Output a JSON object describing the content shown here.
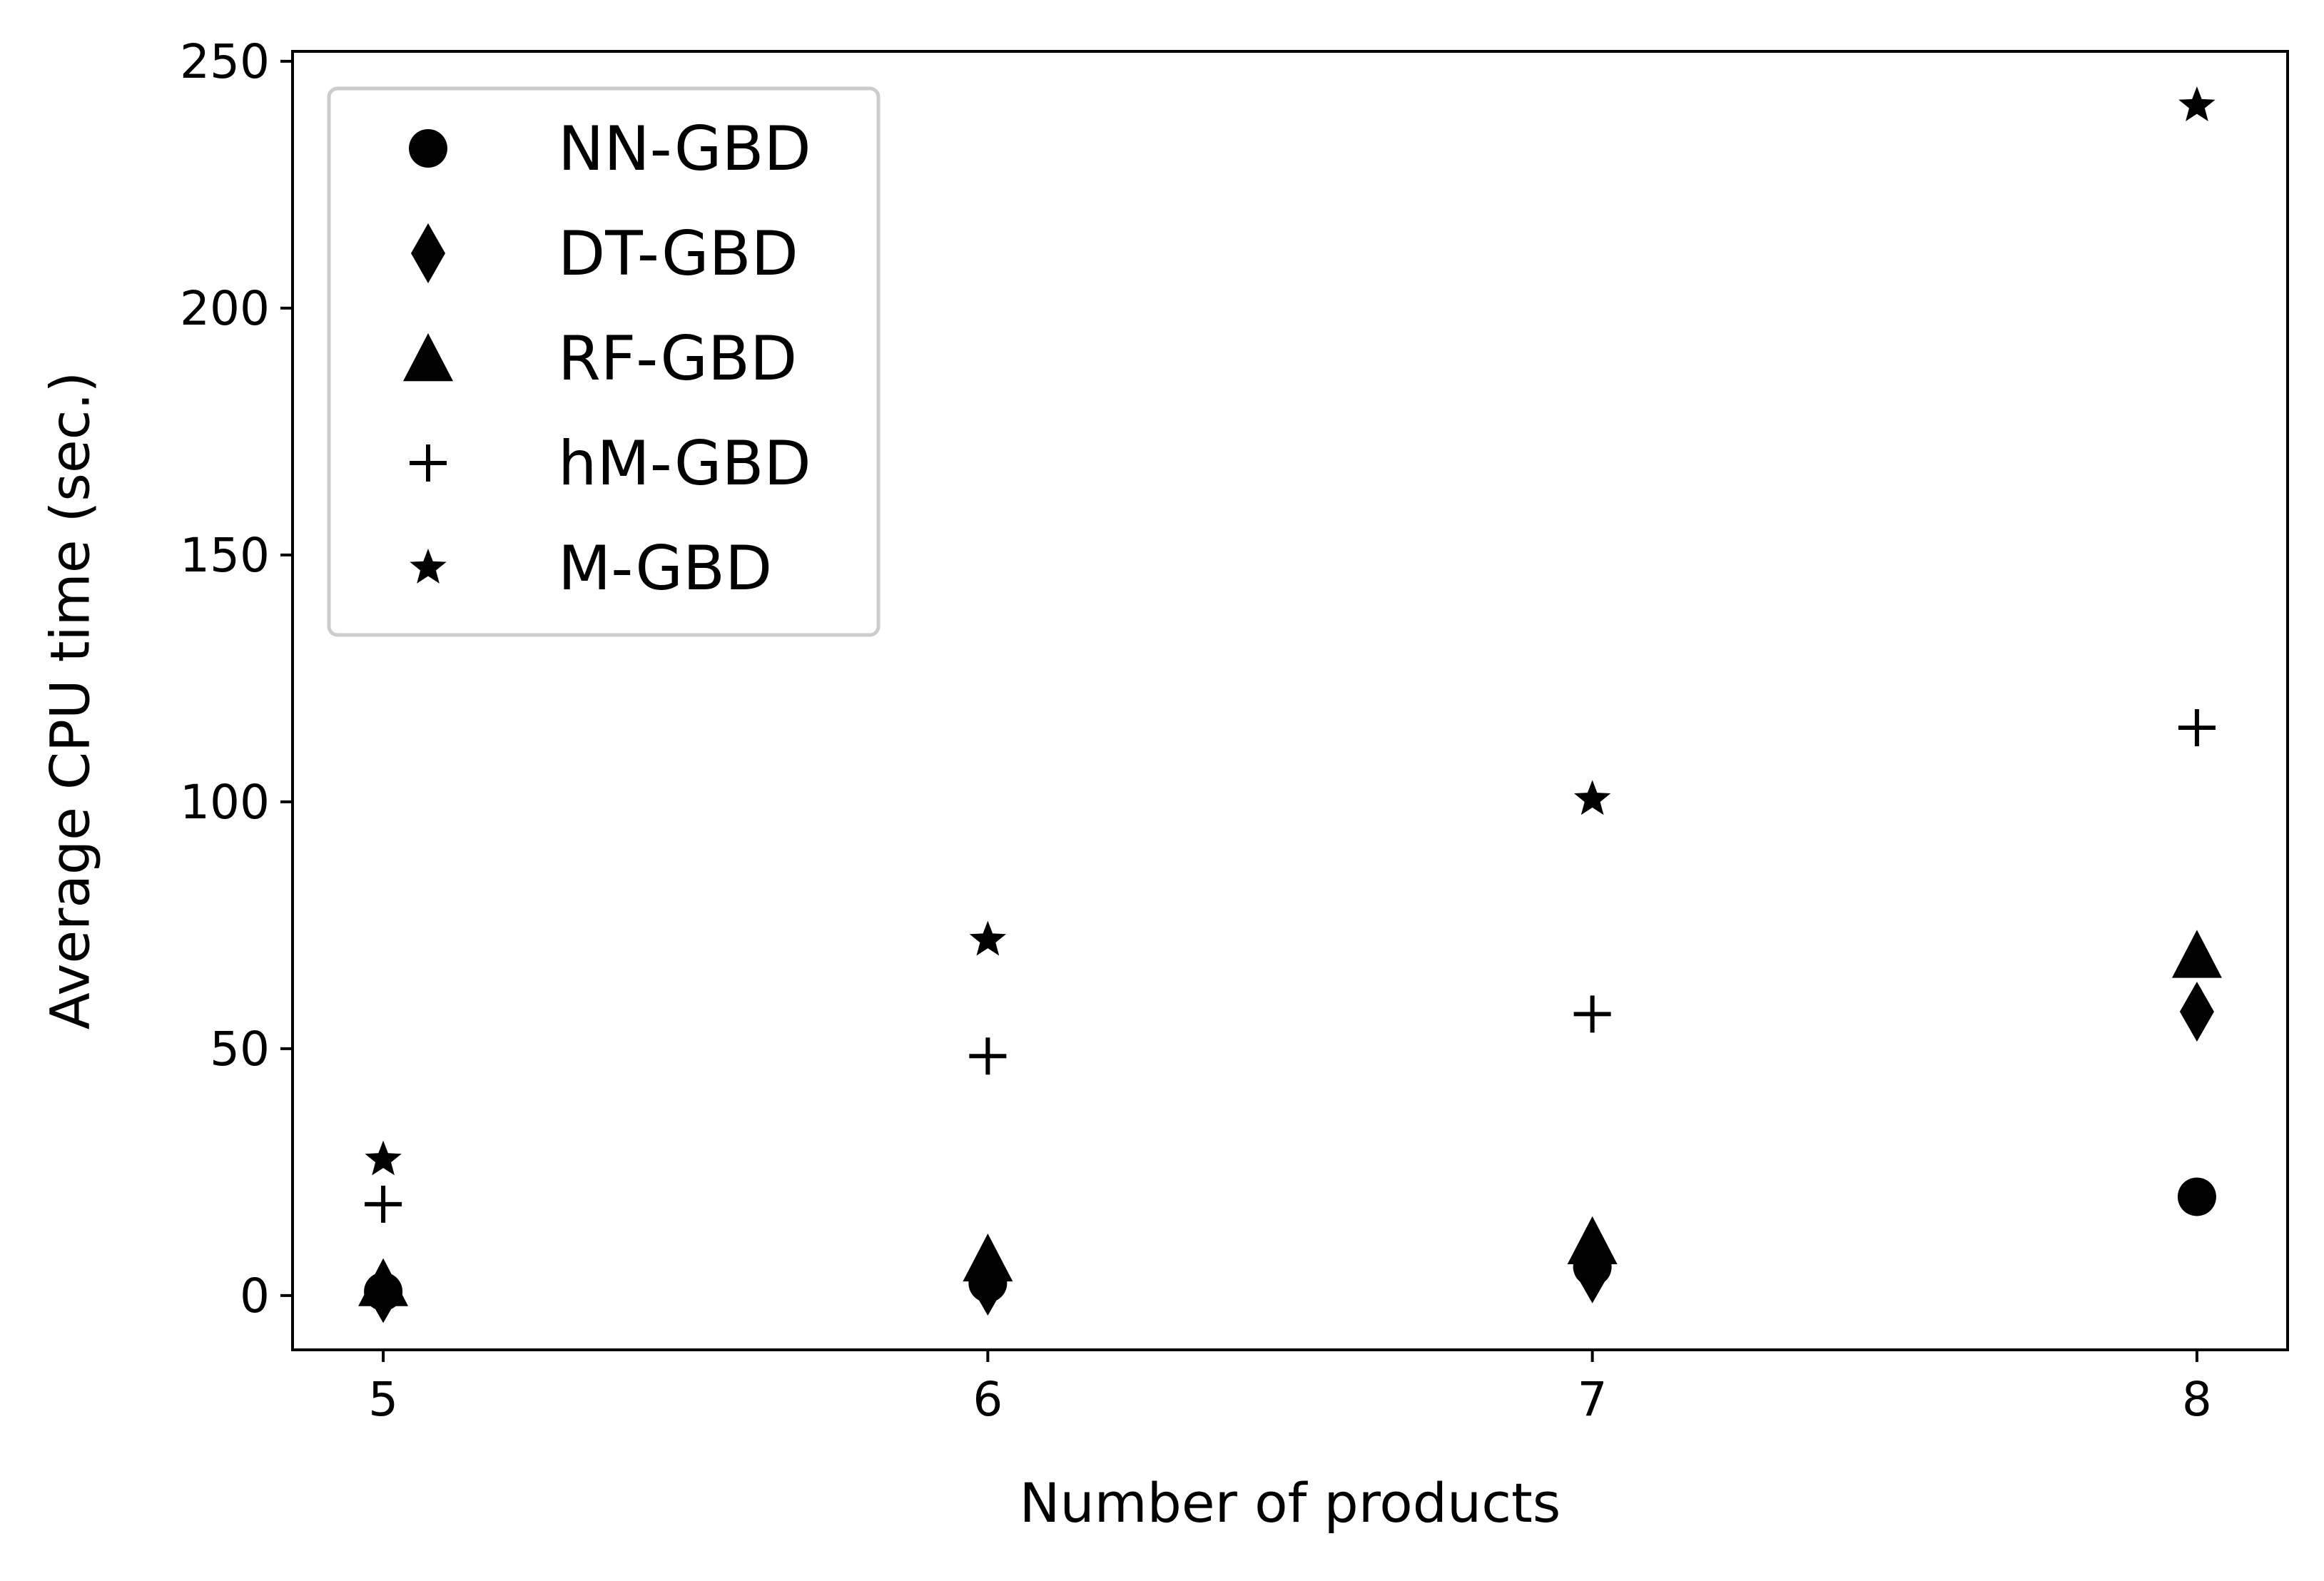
{
  "chart_data": {
    "type": "scatter",
    "title": "",
    "xlabel": "Number of products",
    "ylabel": "Average CPU time (sec.)",
    "x": [
      5,
      6,
      7,
      8
    ],
    "xticks": [
      "5",
      "6",
      "7",
      "8"
    ],
    "yticks": [
      "0",
      "50",
      "100",
      "150",
      "200",
      "250"
    ],
    "xlim": [
      4.85,
      8.15
    ],
    "ylim": [
      -11,
      252
    ],
    "grid": false,
    "legend_position": "top-left",
    "color": "#000000",
    "series": [
      {
        "name": "NN-GBD",
        "marker": "circle",
        "values": [
          0.8,
          2.5,
          5.8,
          20
        ]
      },
      {
        "name": "DT-GBD",
        "marker": "thin-diamond",
        "values": [
          0.5,
          2,
          4.5,
          57.5
        ]
      },
      {
        "name": "RF-GBD",
        "marker": "triangle",
        "values": [
          2.5,
          7.5,
          11,
          69
        ]
      },
      {
        "name": "hM-GBD",
        "marker": "plus",
        "values": [
          18.5,
          48.5,
          57,
          115
        ]
      },
      {
        "name": "M-GBD",
        "marker": "star",
        "values": [
          27.5,
          72,
          100.5,
          241
        ]
      }
    ]
  }
}
